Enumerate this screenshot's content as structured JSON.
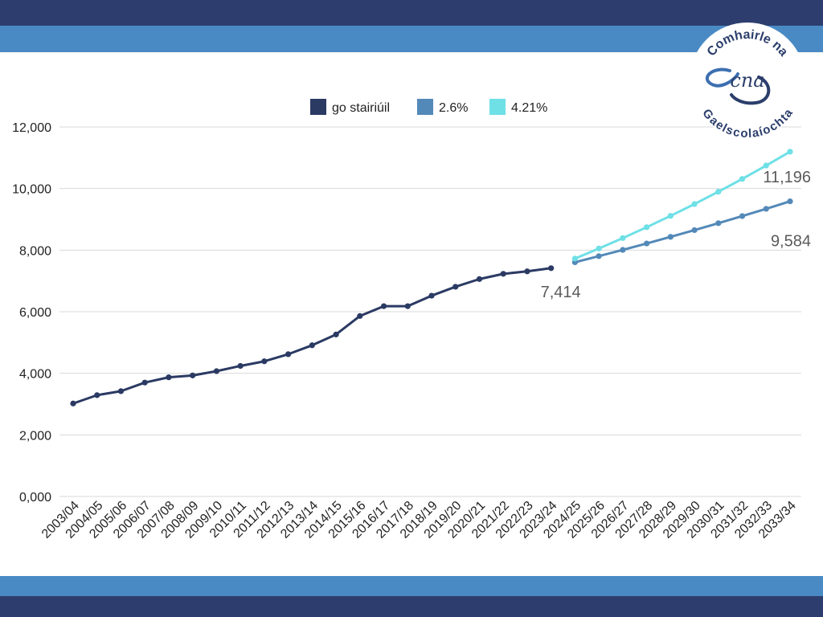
{
  "colors": {
    "band_dark": "#2d3e6e",
    "band_light": "#4a8ac4",
    "historical": "#2b3a63",
    "scenario_low": "#5389b8",
    "scenario_high": "#6ee0e6",
    "grid": "#d9d9d9"
  },
  "logo": {
    "top_text": "Comhairle na",
    "monogram": "cna",
    "bottom_text": "Gaelscolaíochta"
  },
  "chart_data": {
    "type": "line",
    "x": [
      "2003/04",
      "2004/05",
      "2005/06",
      "2006/07",
      "2007/08",
      "2008/09",
      "2009/10",
      "2010/11",
      "2011/12",
      "2012/13",
      "2013/14",
      "2014/15",
      "2015/16",
      "2016/17",
      "2017/18",
      "2018/19",
      "2019/20",
      "2020/21",
      "2021/22",
      "2022/23",
      "2023/24",
      "2024/25",
      "2025/26",
      "2026/27",
      "2027/28",
      "2028/29",
      "2029/30",
      "2030/31",
      "2031/32",
      "2032/33",
      "2033/34"
    ],
    "series": [
      {
        "name": "go stairiúil",
        "values": [
          3020,
          3290,
          3420,
          3700,
          3870,
          3930,
          4070,
          4240,
          4390,
          4620,
          4910,
          5260,
          5860,
          6180,
          6180,
          6520,
          6810,
          7060,
          7230,
          7310,
          7414,
          null,
          null,
          null,
          null,
          null,
          null,
          null,
          null,
          null,
          null
        ]
      },
      {
        "name": "2.6%",
        "values": [
          null,
          null,
          null,
          null,
          null,
          null,
          null,
          null,
          null,
          null,
          null,
          null,
          null,
          null,
          null,
          null,
          null,
          null,
          null,
          null,
          null,
          7607,
          7805,
          8008,
          8216,
          8430,
          8649,
          8874,
          9105,
          9341,
          9584
        ]
      },
      {
        "name": "4.21%",
        "values": [
          null,
          null,
          null,
          null,
          null,
          null,
          null,
          null,
          null,
          null,
          null,
          null,
          null,
          null,
          null,
          null,
          null,
          null,
          null,
          null,
          null,
          7726,
          8052,
          8391,
          8744,
          9112,
          9496,
          9896,
          10312,
          10747,
          11196
        ]
      }
    ],
    "y_ticks": [
      "0,000",
      "2,000",
      "4,000",
      "6,000",
      "8,000",
      "10,000",
      "12,000"
    ],
    "ylim": [
      0,
      12000
    ],
    "grid": true,
    "legend_position": "top-center",
    "annotations": [
      {
        "text": "7,414",
        "x": "2023/24",
        "y": 7414
      },
      {
        "text": "11,196",
        "x": "2033/34",
        "y": 11196
      },
      {
        "text": "9,584",
        "x": "2033/34",
        "y": 9584
      }
    ]
  }
}
